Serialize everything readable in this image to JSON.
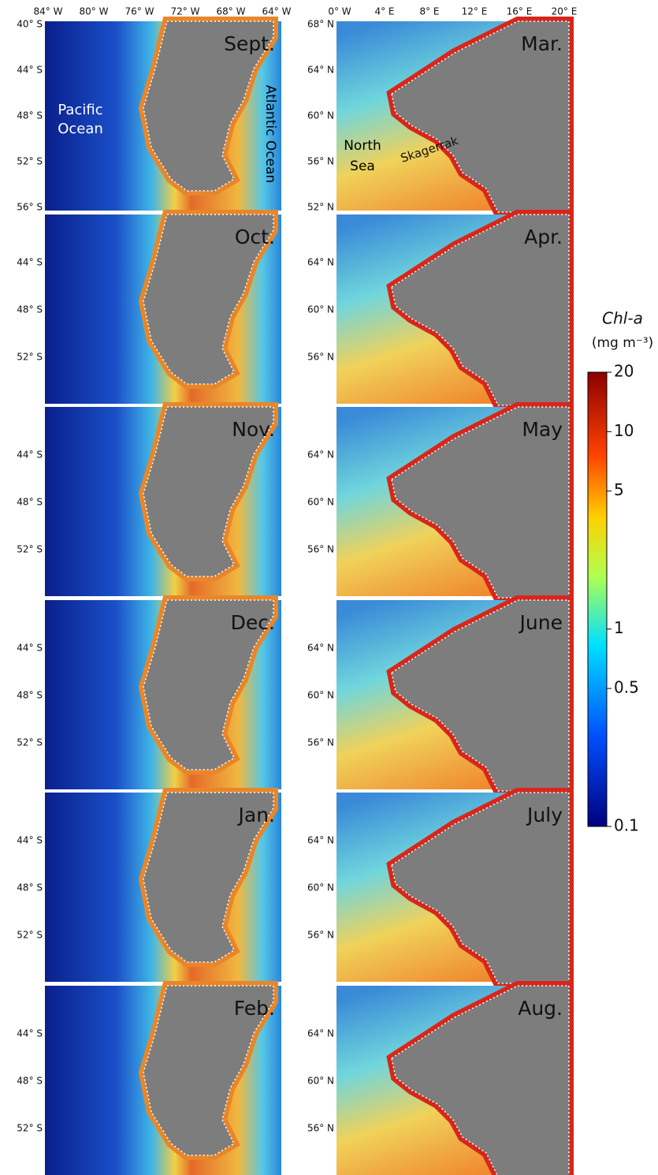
{
  "left_column": {
    "x_ticks": [
      "84° W",
      "80° W",
      "76° W",
      "72° W",
      "68° W",
      "64° W"
    ],
    "panels": [
      {
        "month": "Sept.",
        "y_ticks": [
          "40° S",
          "44° S",
          "48° S",
          "52° S",
          "56° S"
        ]
      },
      {
        "month": "Oct.",
        "y_ticks": [
          "44° S",
          "48° S",
          "52° S"
        ]
      },
      {
        "month": "Nov.",
        "y_ticks": [
          "44° S",
          "48° S",
          "52° S"
        ]
      },
      {
        "month": "Dec.",
        "y_ticks": [
          "44° S",
          "48° S",
          "52° S"
        ]
      },
      {
        "month": "Jan.",
        "y_ticks": [
          "44° S",
          "48° S",
          "52° S"
        ]
      },
      {
        "month": "Feb.",
        "y_ticks": [
          "44° S",
          "48° S",
          "52° S"
        ]
      }
    ],
    "annotations": [
      "Pacific",
      "Ocean",
      "Atlantic Ocean"
    ]
  },
  "right_column": {
    "x_ticks": [
      "0° W",
      "4° E",
      "8° E",
      "12° E",
      "16° E",
      "20° E"
    ],
    "panels": [
      {
        "month": "Mar.",
        "y_ticks": [
          "68° N",
          "64° N",
          "60° N",
          "56° N",
          "52° N"
        ]
      },
      {
        "month": "Apr.",
        "y_ticks": [
          "64° N",
          "60° N",
          "56° N"
        ]
      },
      {
        "month": "May",
        "y_ticks": [
          "64° N",
          "60° N",
          "56° N"
        ]
      },
      {
        "month": "June",
        "y_ticks": [
          "64° N",
          "60° N",
          "56° N"
        ]
      },
      {
        "month": "July",
        "y_ticks": [
          "64° N",
          "60° N",
          "56° N"
        ]
      },
      {
        "month": "Aug.",
        "y_ticks": [
          "64° N",
          "60° N",
          "56° N"
        ]
      }
    ],
    "annotations": [
      "North",
      "Sea",
      "Skagerrak"
    ]
  },
  "colorbar": {
    "title": "Chl-a",
    "unit": "(mg m⁻³)",
    "log_scale": true,
    "lim": [
      0.1,
      20
    ],
    "ticks": [
      0.1,
      0.5,
      1,
      5,
      10,
      20
    ]
  }
}
